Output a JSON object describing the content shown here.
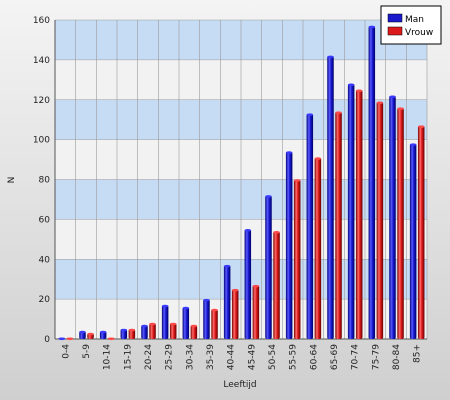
{
  "chart_data": {
    "type": "bar",
    "xlabel": "Leeftijd",
    "ylabel": "N",
    "ylim": [
      0,
      160
    ],
    "yticks": [
      0,
      20,
      40,
      60,
      80,
      100,
      120,
      140,
      160
    ],
    "grid": true,
    "legend_position": "top-right",
    "categories": [
      "0-4",
      "5-9",
      "10-14",
      "15-19",
      "20-24",
      "25-29",
      "30-34",
      "35-39",
      "40-44",
      "45-49",
      "50-54",
      "55-59",
      "60-64",
      "65-69",
      "70-74",
      "75-79",
      "80-84",
      "85+"
    ],
    "series": [
      {
        "name": "Man",
        "color": "#1a1acc",
        "values": [
          0,
          4,
          4,
          5,
          7,
          17,
          16,
          20,
          37,
          55,
          72,
          94,
          113,
          142,
          128,
          157,
          122,
          98
        ]
      },
      {
        "name": "Vrouw",
        "color": "#dd1a1a",
        "values": [
          0,
          3,
          0,
          5,
          8,
          8,
          7,
          15,
          25,
          27,
          54,
          80,
          91,
          114,
          125,
          119,
          116,
          107
        ]
      }
    ],
    "band_colors": [
      "#c6dcf4",
      "#f2f2f2"
    ]
  }
}
